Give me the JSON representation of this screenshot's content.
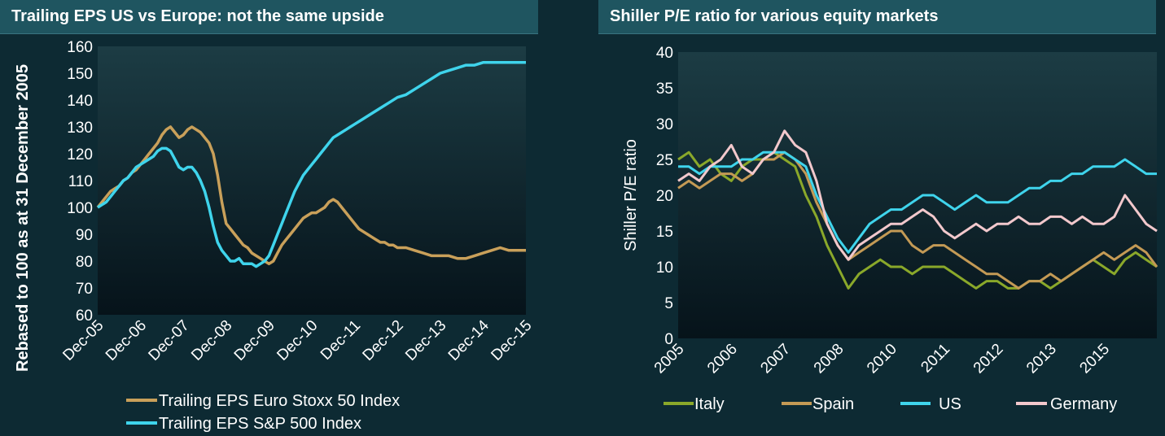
{
  "colors": {
    "euro": "#c9a05a",
    "sp": "#3fd4ec",
    "italy": "#8aa82a",
    "spain": "#c49a55",
    "us": "#3fd4ec",
    "germany": "#f2c8cc"
  },
  "chart_data": [
    {
      "type": "line",
      "title": "Trailing EPS US vs Europe: not the same upside",
      "ylabel": "Rebased to 100 as at 31 December 2005",
      "xlabel": "",
      "ylim": [
        60,
        160
      ],
      "yticks": [
        60,
        70,
        80,
        90,
        100,
        110,
        120,
        130,
        140,
        150,
        160
      ],
      "categories": [
        "Dec-05",
        "Dec-06",
        "Dec-07",
        "Dec-08",
        "Dec-09",
        "Dec-10",
        "Dec-11",
        "Dec-12",
        "Dec-13",
        "Dec-14",
        "Dec-15"
      ],
      "series": [
        {
          "name": "Trailing EPS Euro Stoxx 50 Index",
          "color_key": "euro",
          "x": [
            0,
            0.1,
            0.2,
            0.3,
            0.4,
            0.5,
            0.6,
            0.7,
            0.8,
            0.9,
            1.0,
            1.1,
            1.2,
            1.3,
            1.4,
            1.5,
            1.6,
            1.7,
            1.8,
            1.9,
            2.0,
            2.1,
            2.2,
            2.3,
            2.4,
            2.5,
            2.6,
            2.7,
            2.8,
            2.9,
            3.0,
            3.1,
            3.2,
            3.3,
            3.4,
            3.5,
            3.6,
            3.7,
            3.8,
            3.9,
            4.0,
            4.1,
            4.2,
            4.3,
            4.4,
            4.5,
            4.6,
            4.7,
            4.8,
            4.9,
            5.0,
            5.1,
            5.2,
            5.3,
            5.4,
            5.5,
            5.6,
            5.7,
            5.8,
            5.9,
            6.0,
            6.1,
            6.2,
            6.3,
            6.4,
            6.5,
            6.6,
            6.7,
            6.8,
            6.9,
            7.0,
            7.2,
            7.4,
            7.6,
            7.8,
            8.0,
            8.2,
            8.4,
            8.6,
            8.8,
            9.0,
            9.2,
            9.4,
            9.6,
            9.8,
            10.0
          ],
          "values": [
            100,
            102,
            104,
            106,
            107,
            108,
            110,
            111,
            113,
            114,
            116,
            118,
            120,
            122,
            124,
            127,
            129,
            130,
            128,
            126,
            127,
            129,
            130,
            129,
            128,
            126,
            124,
            120,
            112,
            102,
            94,
            92,
            90,
            88,
            86,
            85,
            83,
            82,
            81,
            80,
            79,
            80,
            83,
            86,
            88,
            90,
            92,
            94,
            96,
            97,
            98,
            98,
            99,
            100,
            102,
            103,
            102,
            100,
            98,
            96,
            94,
            92,
            91,
            90,
            89,
            88,
            87,
            87,
            86,
            86,
            85,
            85,
            84,
            83,
            82,
            82,
            82,
            81,
            81,
            82,
            83,
            84,
            85,
            84,
            84,
            84
          ]
        },
        {
          "name": "Trailing EPS S&P 500 Index",
          "color_key": "sp",
          "x": [
            0,
            0.1,
            0.2,
            0.3,
            0.4,
            0.5,
            0.6,
            0.7,
            0.8,
            0.9,
            1.0,
            1.1,
            1.2,
            1.3,
            1.4,
            1.5,
            1.6,
            1.7,
            1.8,
            1.9,
            2.0,
            2.1,
            2.2,
            2.3,
            2.4,
            2.5,
            2.6,
            2.7,
            2.8,
            2.9,
            3.0,
            3.1,
            3.2,
            3.3,
            3.4,
            3.5,
            3.6,
            3.7,
            3.8,
            3.9,
            4.0,
            4.1,
            4.2,
            4.3,
            4.4,
            4.5,
            4.6,
            4.7,
            4.8,
            4.9,
            5.0,
            5.1,
            5.2,
            5.3,
            5.4,
            5.5,
            5.6,
            5.7,
            5.8,
            5.9,
            6.0,
            6.2,
            6.4,
            6.6,
            6.8,
            7.0,
            7.2,
            7.4,
            7.6,
            7.8,
            8.0,
            8.2,
            8.4,
            8.6,
            8.8,
            9.0,
            9.2,
            9.4,
            9.6,
            9.8,
            10.0
          ],
          "values": [
            100,
            101,
            102,
            104,
            106,
            108,
            110,
            111,
            113,
            115,
            116,
            117,
            118,
            119,
            121,
            122,
            122,
            121,
            118,
            115,
            114,
            115,
            115,
            113,
            110,
            106,
            100,
            93,
            87,
            84,
            82,
            80,
            80,
            81,
            79,
            79,
            79,
            78,
            79,
            80,
            82,
            86,
            90,
            94,
            98,
            102,
            106,
            109,
            112,
            114,
            116,
            118,
            120,
            122,
            124,
            126,
            127,
            128,
            129,
            130,
            131,
            133,
            135,
            137,
            139,
            141,
            142,
            144,
            146,
            148,
            150,
            151,
            152,
            153,
            153,
            154,
            154,
            154,
            154,
            154,
            154
          ]
        }
      ]
    },
    {
      "type": "line",
      "title": "Shiller P/E ratio for various equity markets",
      "ylabel": "Shiller P/E ratio",
      "xlabel": "",
      "ylim": [
        0,
        40
      ],
      "yticks": [
        0,
        5,
        10,
        15,
        20,
        25,
        30,
        35,
        40
      ],
      "xtick_labels": [
        "2005",
        "2006",
        "2007",
        "2008",
        "2010",
        "2011",
        "2012",
        "2013",
        "2015"
      ],
      "xtick_positions": [
        0,
        1,
        2,
        3,
        4,
        5,
        6,
        7,
        8
      ],
      "series": [
        {
          "name": "Italy",
          "color_key": "italy",
          "x": [
            0,
            0.2,
            0.4,
            0.6,
            0.8,
            1.0,
            1.2,
            1.4,
            1.6,
            1.8,
            2.0,
            2.2,
            2.4,
            2.6,
            2.8,
            3.0,
            3.2,
            3.4,
            3.6,
            3.8,
            4.0,
            4.2,
            4.4,
            4.6,
            4.8,
            5.0,
            5.2,
            5.4,
            5.6,
            5.8,
            6.0,
            6.2,
            6.4,
            6.6,
            6.8,
            7.0,
            7.2,
            7.4,
            7.6,
            7.8,
            8.0,
            8.2,
            8.4,
            8.6,
            8.8,
            9.0
          ],
          "values": [
            25,
            26,
            24,
            25,
            23,
            22,
            24,
            25,
            25,
            26,
            25,
            24,
            20,
            17,
            13,
            10,
            7,
            9,
            10,
            11,
            10,
            10,
            9,
            10,
            10,
            10,
            9,
            8,
            7,
            8,
            8,
            7,
            7,
            8,
            8,
            7,
            8,
            9,
            10,
            11,
            10,
            9,
            11,
            12,
            11,
            10
          ]
        },
        {
          "name": "Spain",
          "color_key": "spain",
          "x": [
            0,
            0.2,
            0.4,
            0.6,
            0.8,
            1.0,
            1.2,
            1.4,
            1.6,
            1.8,
            2.0,
            2.2,
            2.4,
            2.6,
            2.8,
            3.0,
            3.2,
            3.4,
            3.6,
            3.8,
            4.0,
            4.2,
            4.4,
            4.6,
            4.8,
            5.0,
            5.2,
            5.4,
            5.6,
            5.8,
            6.0,
            6.2,
            6.4,
            6.6,
            6.8,
            7.0,
            7.2,
            7.4,
            7.6,
            7.8,
            8.0,
            8.2,
            8.4,
            8.6,
            8.8,
            9.0
          ],
          "values": [
            21,
            22,
            21,
            22,
            23,
            23,
            22,
            23,
            25,
            25,
            26,
            25,
            23,
            19,
            16,
            13,
            11,
            12,
            13,
            14,
            15,
            15,
            13,
            12,
            13,
            13,
            12,
            11,
            10,
            9,
            9,
            8,
            7,
            8,
            8,
            9,
            8,
            9,
            10,
            11,
            12,
            11,
            12,
            13,
            12,
            10
          ]
        },
        {
          "name": "US",
          "color_key": "us",
          "x": [
            0,
            0.2,
            0.4,
            0.6,
            0.8,
            1.0,
            1.2,
            1.4,
            1.6,
            1.8,
            2.0,
            2.2,
            2.4,
            2.6,
            2.8,
            3.0,
            3.2,
            3.4,
            3.6,
            3.8,
            4.0,
            4.2,
            4.4,
            4.6,
            4.8,
            5.0,
            5.2,
            5.4,
            5.6,
            5.8,
            6.0,
            6.2,
            6.4,
            6.6,
            6.8,
            7.0,
            7.2,
            7.4,
            7.6,
            7.8,
            8.0,
            8.2,
            8.4,
            8.6,
            8.8,
            9.0
          ],
          "values": [
            24,
            24,
            23,
            24,
            24,
            24,
            25,
            25,
            26,
            26,
            26,
            25,
            24,
            20,
            17,
            14,
            12,
            14,
            16,
            17,
            18,
            18,
            19,
            20,
            20,
            19,
            18,
            19,
            20,
            19,
            19,
            19,
            20,
            21,
            21,
            22,
            22,
            23,
            23,
            24,
            24,
            24,
            25,
            24,
            23,
            23
          ]
        },
        {
          "name": "Germany",
          "color_key": "germany",
          "x": [
            0,
            0.2,
            0.4,
            0.6,
            0.8,
            1.0,
            1.2,
            1.4,
            1.6,
            1.8,
            2.0,
            2.2,
            2.4,
            2.6,
            2.8,
            3.0,
            3.2,
            3.4,
            3.6,
            3.8,
            4.0,
            4.2,
            4.4,
            4.6,
            4.8,
            5.0,
            5.2,
            5.4,
            5.6,
            5.8,
            6.0,
            6.2,
            6.4,
            6.6,
            6.8,
            7.0,
            7.2,
            7.4,
            7.6,
            7.8,
            8.0,
            8.2,
            8.4,
            8.6,
            8.8,
            9.0
          ],
          "values": [
            22,
            23,
            22,
            24,
            25,
            27,
            24,
            23,
            25,
            26,
            29,
            27,
            26,
            22,
            16,
            13,
            11,
            13,
            14,
            15,
            16,
            16,
            17,
            18,
            17,
            15,
            14,
            15,
            16,
            15,
            16,
            16,
            17,
            16,
            16,
            17,
            17,
            16,
            17,
            16,
            16,
            17,
            20,
            18,
            16,
            15
          ]
        }
      ]
    }
  ]
}
